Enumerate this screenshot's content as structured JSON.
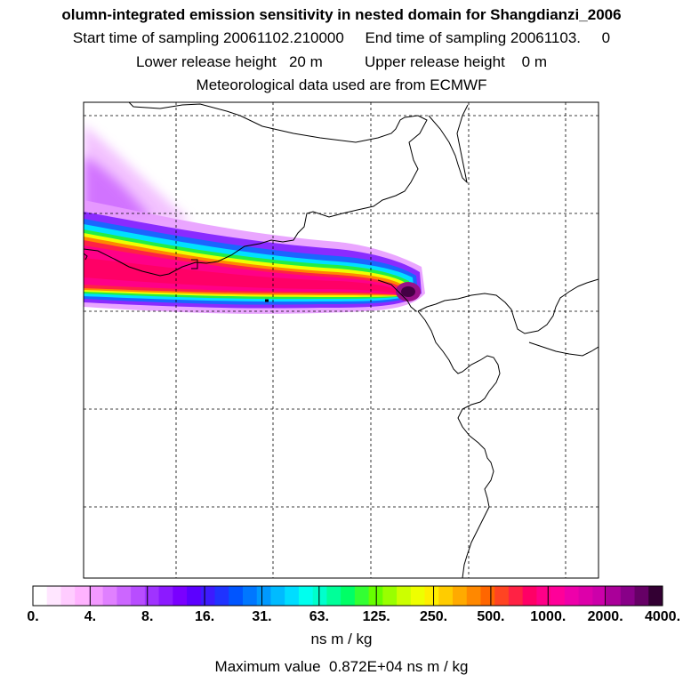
{
  "header": {
    "title": "olumn-integrated emission sensitivity in nested domain for Shangdianzi_2006",
    "sampling_line": "Start time of sampling 20061102.210000     End time of sampling 20061103.     0",
    "release_line": "Lower release height   20 m          Upper release height    0 m",
    "met_line": "Meteorological data used are from ECMWF"
  },
  "chart_data": {
    "type": "heatmap",
    "title": "olumn-integrated emission sensitivity in nested domain for Shangdianzi_2006",
    "colorbar": {
      "tick_labels": [
        "0.",
        "4.",
        "8.",
        "16.",
        "31.",
        "63.",
        "125.",
        "250.",
        "500.",
        "1000.",
        "2000.",
        "4000."
      ],
      "tick_values": [
        0,
        4,
        8,
        16,
        31,
        63,
        125,
        250,
        500,
        1000,
        2000,
        4000
      ],
      "units": "ns m / kg",
      "colors": [
        "#ffffff",
        "#ffe6ff",
        "#ffccff",
        "#ffb3ff",
        "#f399ff",
        "#e080ff",
        "#cc66ff",
        "#b84dff",
        "#a033ff",
        "#8c1aff",
        "#7a00ff",
        "#5c00ff",
        "#3d1aff",
        "#1f33ff",
        "#0055ff",
        "#0077ff",
        "#0099ff",
        "#00bbff",
        "#00ddff",
        "#00ffee",
        "#00ffcc",
        "#00ff99",
        "#00ff66",
        "#33ff33",
        "#66ff00",
        "#99ff00",
        "#ccff00",
        "#eeff00",
        "#ffee00",
        "#ffcc00",
        "#ffaa00",
        "#ff8800",
        "#ff6600",
        "#ff4422",
        "#ff2244",
        "#ff0066",
        "#ff0088",
        "#ff0099",
        "#ee00aa",
        "#dd00aa",
        "#cc00aa",
        "#aa0099",
        "#880088",
        "#660066",
        "#330033"
      ]
    },
    "plume_peak_level": "4000.",
    "max_value_ns_m_per_kg": 8720,
    "xlabel": "",
    "ylabel": ""
  },
  "footer": {
    "units": "ns m / kg",
    "max_value": "Maximum value  0.872E+04 ns m / kg"
  }
}
